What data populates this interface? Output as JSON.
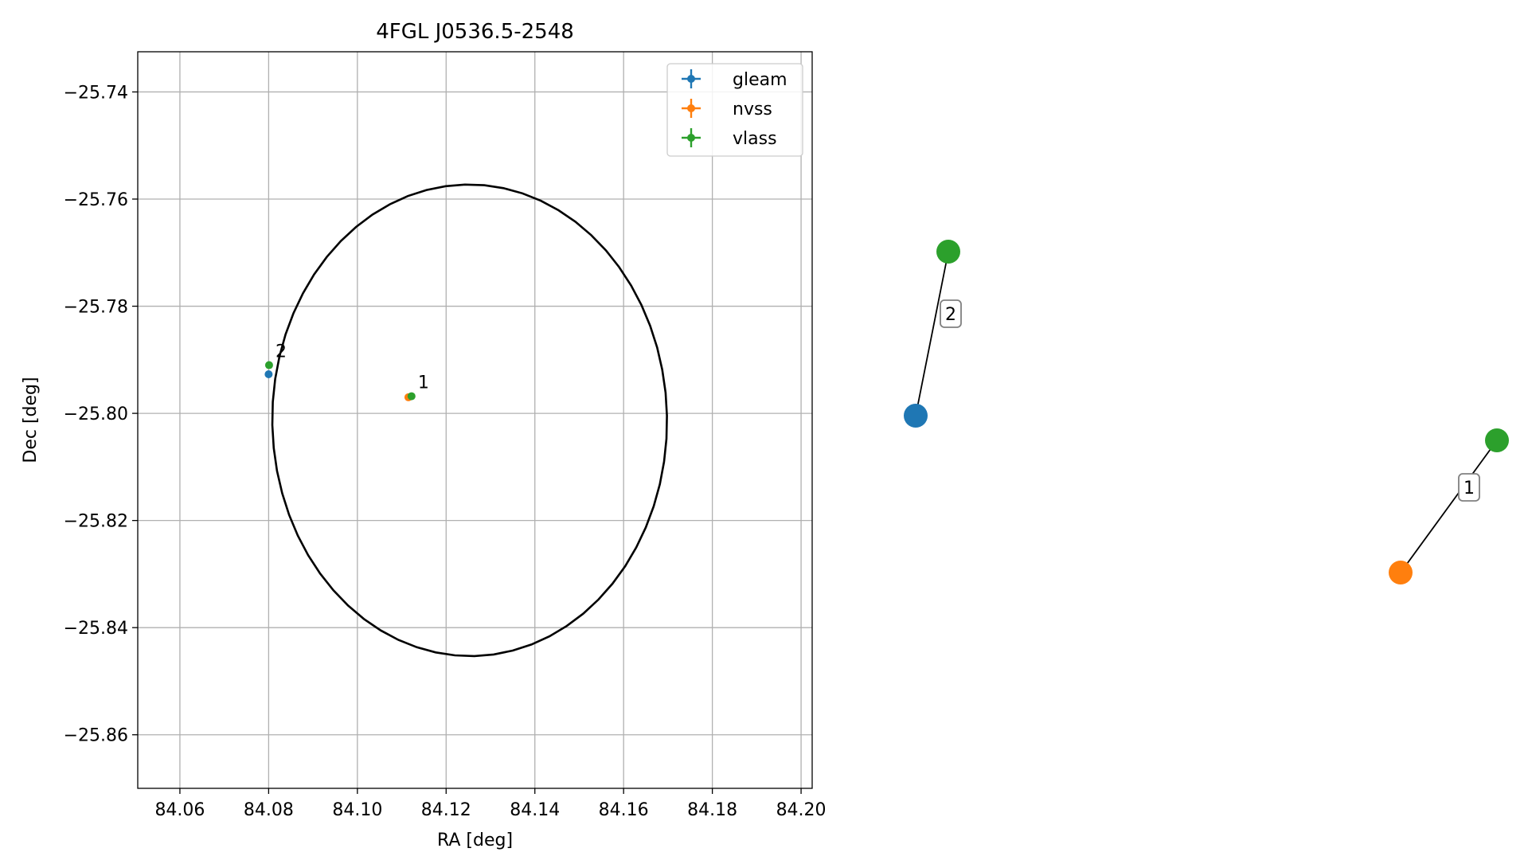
{
  "chart_data": [
    {
      "type": "scatter",
      "title": "4FGL J0536.5-2548",
      "xlabel": "RA [deg]",
      "ylabel": "Dec [deg]",
      "xlim": [
        84.0505,
        84.2025
      ],
      "ylim": [
        -25.87,
        -25.7325
      ],
      "xticks": [
        84.06,
        84.08,
        84.1,
        84.12,
        84.14,
        84.16,
        84.18,
        84.2
      ],
      "xtick_labels": [
        "84.06",
        "84.08",
        "84.10",
        "84.12",
        "84.14",
        "84.16",
        "84.18",
        "84.20"
      ],
      "yticks": [
        -25.74,
        -25.76,
        -25.78,
        -25.8,
        -25.82,
        -25.84,
        -25.86
      ],
      "ytick_labels": [
        "−25.74",
        "−25.76",
        "−25.78",
        "−25.80",
        "−25.82",
        "−25.84",
        "−25.86"
      ],
      "grid": true,
      "legend_position": "upper right",
      "series": [
        {
          "name": "gleam",
          "color": "#1f77b4",
          "points": [
            {
              "x": 84.08,
              "y": -25.7927
            }
          ]
        },
        {
          "name": "nvss",
          "color": "#ff7f0e",
          "points": [
            {
              "x": 84.1115,
              "y": -25.797
            }
          ]
        },
        {
          "name": "vlass",
          "color": "#2ca02c",
          "points": [
            {
              "x": 84.0801,
              "y": -25.791
            },
            {
              "x": 84.1122,
              "y": -25.7968
            }
          ]
        }
      ],
      "ellipse": {
        "center": [
          84.1253,
          -25.8013
        ],
        "semi_major_deg": 0.0445,
        "semi_minor_deg": 0.044,
        "angle_deg": -10,
        "color": "#000000"
      },
      "annotations": [
        {
          "text": "1",
          "x": 84.1122,
          "y": -25.7968
        },
        {
          "text": "2",
          "x": 84.0801,
          "y": -25.791
        }
      ]
    },
    {
      "type": "network",
      "nodes": [
        {
          "id": "g2",
          "color": "#1f77b4"
        },
        {
          "id": "v2",
          "color": "#2ca02c"
        },
        {
          "id": "n1",
          "color": "#ff7f0e"
        },
        {
          "id": "v1",
          "color": "#2ca02c"
        }
      ],
      "edges": [
        {
          "source": "g2",
          "target": "v2",
          "label": "2"
        },
        {
          "source": "n1",
          "target": "v1",
          "label": "1"
        }
      ]
    }
  ]
}
